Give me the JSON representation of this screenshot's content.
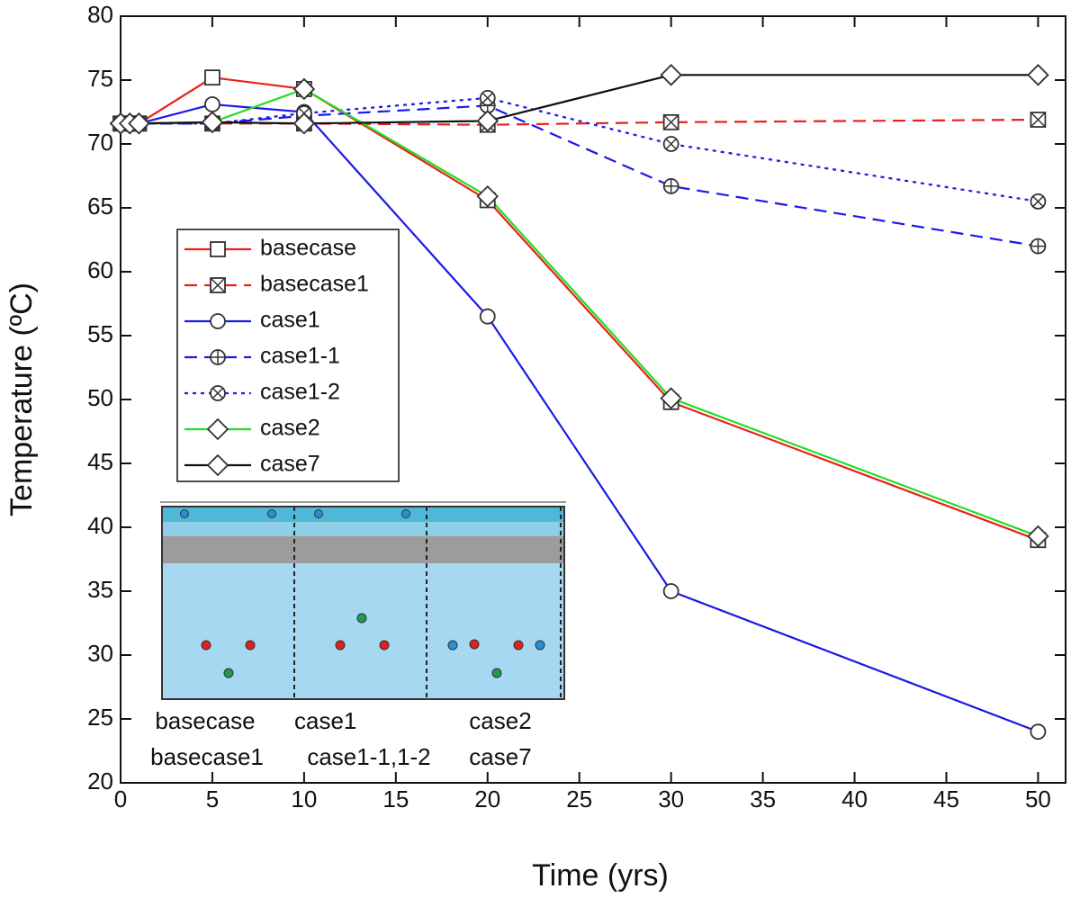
{
  "chart_data": {
    "type": "line",
    "xlabel": "Time (yrs)",
    "ylabel": "Temperature (ºC)",
    "x": [
      0,
      0.5,
      1,
      5,
      10,
      20,
      30,
      50
    ],
    "xlim": [
      0,
      51.5
    ],
    "ylim": [
      20,
      80
    ],
    "xticks": [
      0,
      5,
      10,
      15,
      20,
      25,
      30,
      35,
      40,
      45,
      50
    ],
    "yticks": [
      20,
      25,
      30,
      35,
      40,
      45,
      50,
      55,
      60,
      65,
      70,
      75,
      80
    ],
    "legend": "upper left",
    "series": [
      {
        "name": "basecase",
        "color": "#e8201a",
        "dash": "solid",
        "marker": "square",
        "values": [
          71.6,
          71.6,
          71.6,
          75.2,
          74.3,
          65.6,
          49.8,
          39.0
        ]
      },
      {
        "name": "basecase1",
        "color": "#e8201a",
        "dash": "dashed",
        "marker": "square-x",
        "values": [
          71.6,
          71.6,
          71.6,
          71.6,
          71.6,
          71.5,
          71.7,
          71.9
        ]
      },
      {
        "name": "case1",
        "color": "#1a1ae8",
        "dash": "solid",
        "marker": "circle",
        "values": [
          71.6,
          71.6,
          71.6,
          73.1,
          72.5,
          56.5,
          35.0,
          24.0
        ]
      },
      {
        "name": "case1-1",
        "color": "#1a1ae8",
        "dash": "dashed",
        "marker": "circle-plus",
        "values": [
          71.6,
          71.6,
          71.6,
          71.6,
          72.2,
          73.0,
          66.7,
          62.0
        ]
      },
      {
        "name": "case1-2",
        "color": "#1a1ae8",
        "dash": "dotted",
        "marker": "circle-x",
        "values": [
          71.6,
          71.6,
          71.6,
          71.6,
          72.4,
          73.6,
          70.0,
          65.5
        ]
      },
      {
        "name": "case2",
        "color": "#22dd22",
        "dash": "solid",
        "marker": "diamond",
        "values": [
          71.6,
          71.6,
          71.6,
          71.7,
          74.3,
          65.9,
          50.1,
          39.3
        ]
      },
      {
        "name": "case7",
        "color": "#111111",
        "dash": "solid",
        "marker": "diamond",
        "values": [
          71.6,
          71.6,
          71.6,
          71.7,
          71.6,
          71.8,
          75.4,
          75.4
        ]
      }
    ],
    "inset_labels": [
      "basecase",
      "basecase1",
      "case1",
      "case1-1,1-2",
      "case2",
      "case7"
    ]
  }
}
